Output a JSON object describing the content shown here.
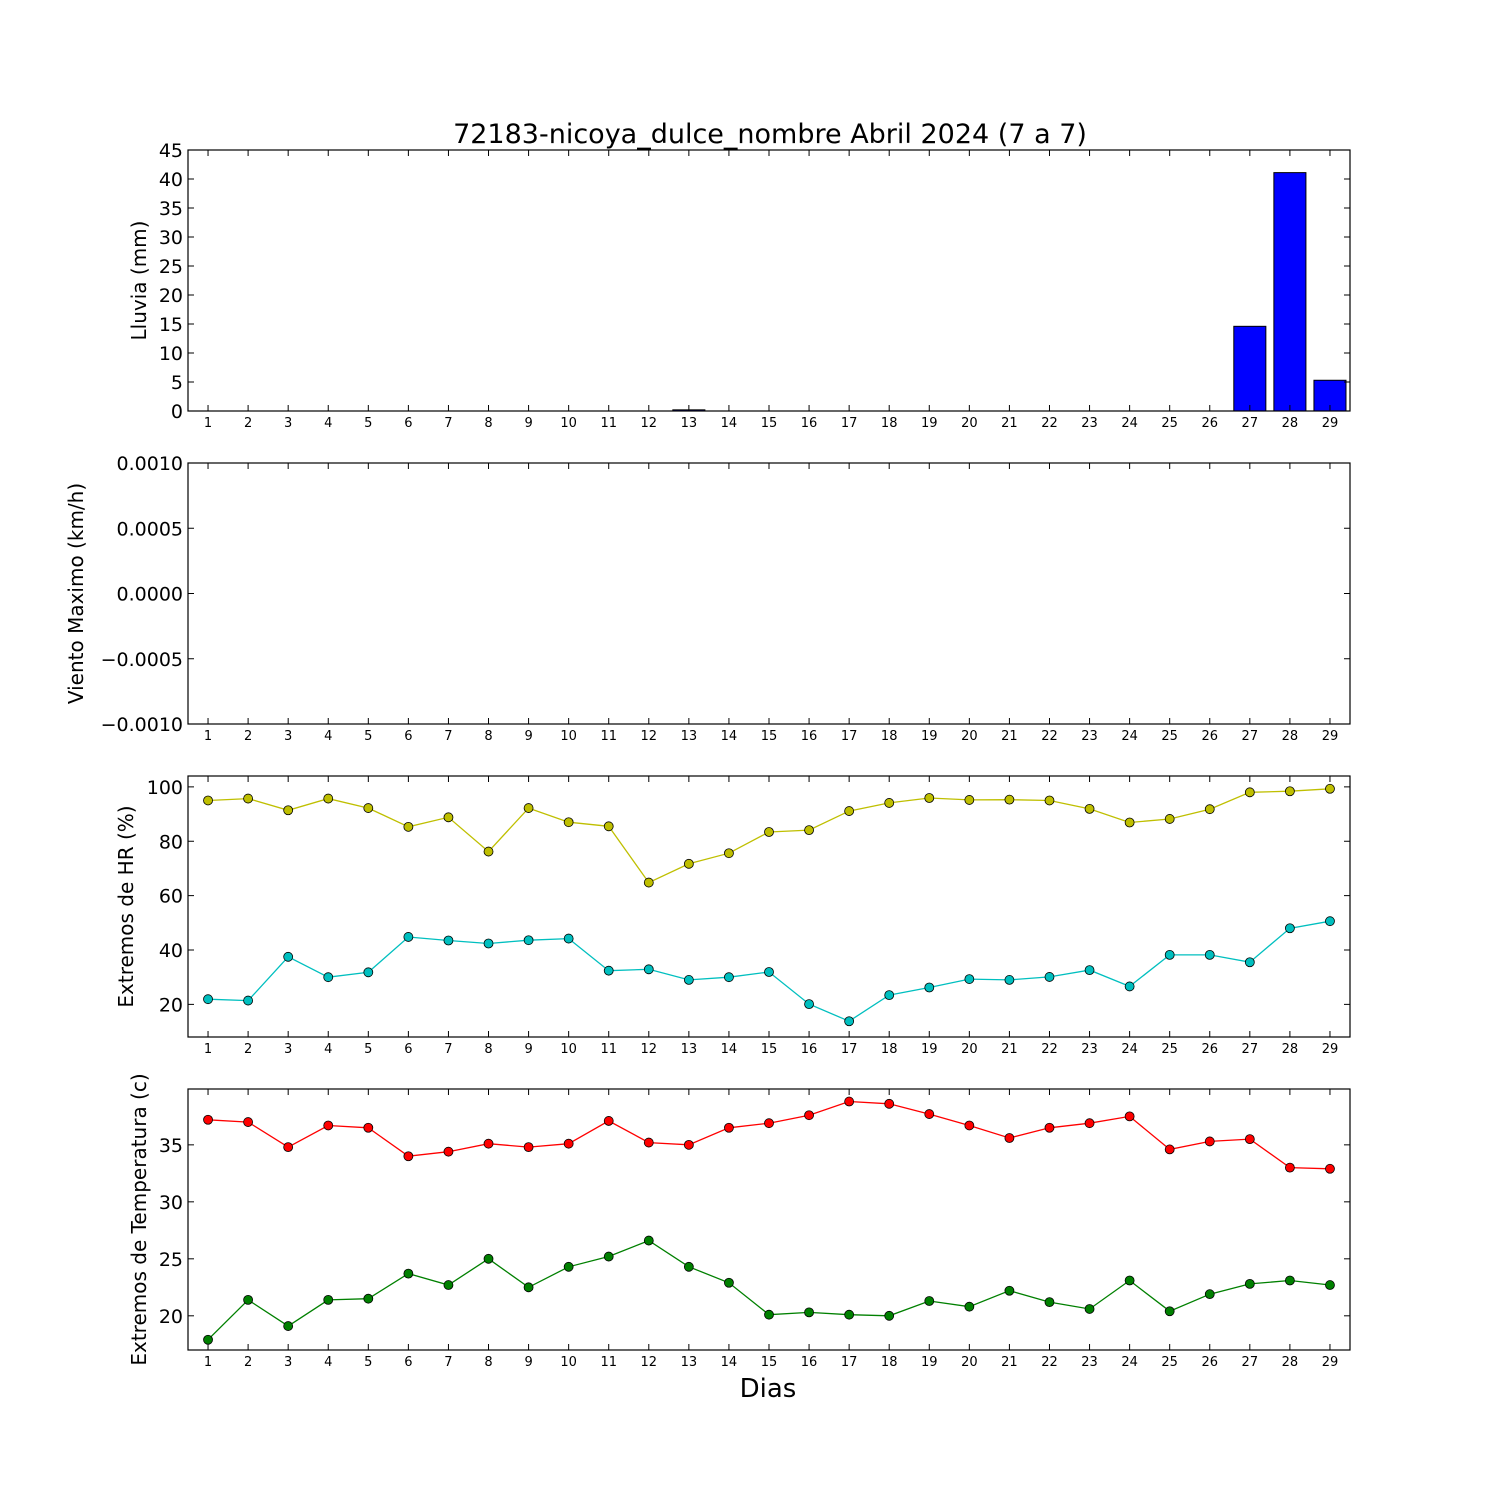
{
  "title": "72183-nicoya_dulce_nombre Abril 2024  (7 a 7)",
  "xlabel": "Dias",
  "days": [
    1,
    2,
    3,
    4,
    5,
    6,
    7,
    8,
    9,
    10,
    11,
    12,
    13,
    14,
    15,
    16,
    17,
    18,
    19,
    20,
    21,
    22,
    23,
    24,
    25,
    26,
    27,
    28,
    29
  ],
  "colors": {
    "rain": "#0000ff",
    "hr_max": "#bfbf00",
    "hr_min": "#00bfbf",
    "temp_max": "#ff0000",
    "temp_min": "#008000"
  },
  "chart_data": [
    {
      "type": "bar",
      "ylabel": "Lluvia (mm)",
      "ylim": [
        0,
        45
      ],
      "yticks": [
        "0",
        "5",
        "10",
        "15",
        "20",
        "25",
        "30",
        "35",
        "40",
        "45"
      ],
      "categories": [
        "1",
        "2",
        "3",
        "4",
        "5",
        "6",
        "7",
        "8",
        "9",
        "10",
        "11",
        "12",
        "13",
        "14",
        "15",
        "16",
        "17",
        "18",
        "19",
        "20",
        "21",
        "22",
        "23",
        "24",
        "25",
        "26",
        "27",
        "28",
        "29"
      ],
      "values": [
        0,
        0,
        0,
        0,
        0,
        0,
        0,
        0,
        0,
        0,
        0,
        0,
        0.2,
        0,
        0,
        0,
        0,
        0,
        0,
        0,
        0,
        0,
        0,
        0,
        0,
        0,
        14.6,
        41.1,
        5.3
      ]
    },
    {
      "type": "line",
      "ylabel": "Viento Maximo (km/h)",
      "ylim": [
        -0.001,
        0.001
      ],
      "yticks": [
        "−0.0010",
        "−0.0005",
        "0.0000",
        "0.0005",
        "0.0010"
      ],
      "categories": [
        "1",
        "2",
        "3",
        "4",
        "5",
        "6",
        "7",
        "8",
        "9",
        "10",
        "11",
        "12",
        "13",
        "14",
        "15",
        "16",
        "17",
        "18",
        "19",
        "20",
        "21",
        "22",
        "23",
        "24",
        "25",
        "26",
        "27",
        "28",
        "29"
      ],
      "series": []
    },
    {
      "type": "line",
      "ylabel": "Extremos de HR (%)",
      "ylim": [
        8,
        104
      ],
      "yticks": [
        "20",
        "40",
        "60",
        "80",
        "100"
      ],
      "categories": [
        "1",
        "2",
        "3",
        "4",
        "5",
        "6",
        "7",
        "8",
        "9",
        "10",
        "11",
        "12",
        "13",
        "14",
        "15",
        "16",
        "17",
        "18",
        "19",
        "20",
        "21",
        "22",
        "23",
        "24",
        "25",
        "26",
        "27",
        "28",
        "29"
      ],
      "series": [
        {
          "color": "#bfbf00",
          "values": [
            95,
            95.7,
            91.4,
            95.7,
            92.2,
            85.3,
            88.8,
            76.2,
            92.2,
            87,
            85.5,
            64.8,
            71.7,
            75.6,
            83.4,
            84.1,
            91.1,
            94.1,
            95.9,
            95.2,
            95.3,
            95,
            91.9,
            86.9,
            88.2,
            91.8,
            98,
            98.4,
            99.3
          ]
        },
        {
          "color": "#00bfbf",
          "values": [
            21.9,
            21.4,
            37.5,
            30,
            31.8,
            44.8,
            43.5,
            42.4,
            43.6,
            44.2,
            32.4,
            32.9,
            29,
            30,
            31.9,
            20.1,
            13.8,
            23.4,
            26.2,
            29.3,
            29,
            30.1,
            32.6,
            26.6,
            38.2,
            38.2,
            35.5,
            48,
            50.6
          ]
        }
      ]
    },
    {
      "type": "line",
      "ylabel": "Extremos de Temperatura (c)",
      "ylim": [
        17,
        39.9
      ],
      "yticks": [
        "20",
        "25",
        "30",
        "35"
      ],
      "categories": [
        "1",
        "2",
        "3",
        "4",
        "5",
        "6",
        "7",
        "8",
        "9",
        "10",
        "11",
        "12",
        "13",
        "14",
        "15",
        "16",
        "17",
        "18",
        "19",
        "20",
        "21",
        "22",
        "23",
        "24",
        "25",
        "26",
        "27",
        "28",
        "29"
      ],
      "series": [
        {
          "color": "#ff0000",
          "values": [
            37.2,
            37,
            34.8,
            36.7,
            36.5,
            34,
            34.4,
            35.1,
            34.8,
            35.1,
            37.1,
            35.2,
            35,
            36.5,
            36.9,
            37.6,
            38.8,
            38.6,
            37.7,
            36.7,
            35.6,
            36.5,
            36.9,
            37.5,
            34.6,
            35.3,
            35.5,
            33,
            32.9
          ]
        },
        {
          "color": "#008000",
          "values": [
            17.9,
            21.4,
            19.1,
            21.4,
            21.5,
            23.7,
            22.7,
            25,
            22.5,
            24.3,
            25.2,
            26.6,
            24.3,
            22.9,
            20.1,
            20.3,
            20.1,
            20,
            21.3,
            20.8,
            22.2,
            21.2,
            20.6,
            23.1,
            20.4,
            21.9,
            22.8,
            23.1,
            22.7
          ]
        }
      ]
    }
  ]
}
